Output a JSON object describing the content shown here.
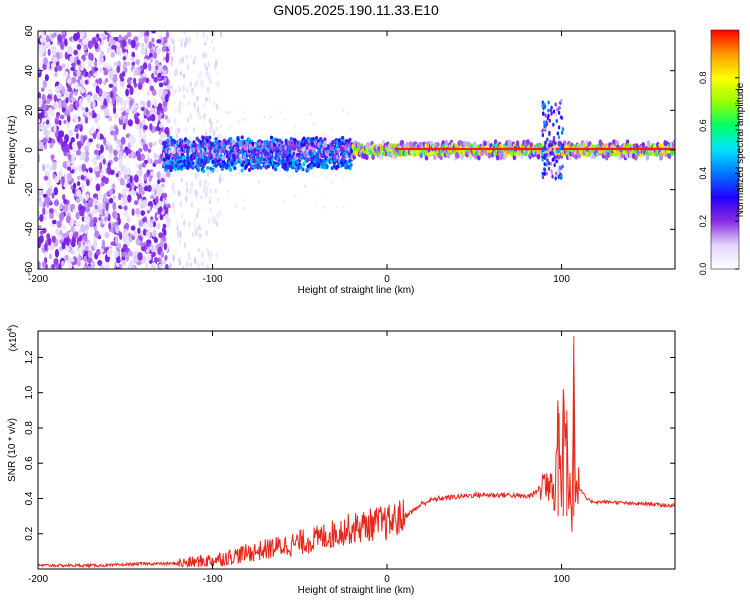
{
  "title": "GN05.2025.190.11.33.E10",
  "colors": {
    "snr_line": "#e8271c",
    "axis": "#000000",
    "background": "#ffffff"
  },
  "chart_data": [
    {
      "type": "heatmap",
      "name": "spectrogram",
      "xlabel": "Height of straight line (km)",
      "ylabel": "Frequency (Hz)",
      "xlim": [
        -200,
        165
      ],
      "ylim": [
        -60,
        60
      ],
      "x_ticks": [
        -200,
        -100,
        0,
        100
      ],
      "x_tick_labels": [
        "-200",
        "-100",
        "0",
        "100"
      ],
      "y_ticks": [
        -60,
        -40,
        -20,
        0,
        20,
        40,
        60
      ],
      "y_tick_labels": [
        "-60",
        "-40",
        "-20",
        "0",
        "20",
        "40",
        "60"
      ],
      "colorbar": {
        "label": "Normalized spectral amplitude",
        "range": [
          0,
          1
        ],
        "ticks": [
          0,
          0.2,
          0.4,
          0.6,
          0.8
        ],
        "tick_labels": [
          "0.0",
          "0.2",
          "0.4",
          "0.6",
          "0.8"
        ],
        "colormap": [
          "#ffffff",
          "#e2d6ff",
          "#8a2be2",
          "#2200ff",
          "#0077ff",
          "#00e5ff",
          "#00ff66",
          "#99ff00",
          "#ffff00",
          "#ff9900",
          "#ff0000"
        ]
      },
      "features": {
        "broadband_noise_x_range": [
          -200,
          -125
        ],
        "sparse_noise_x_range": [
          -125,
          -95
        ],
        "signal_band_center_hz": 0,
        "signal_start_x": -128,
        "strong_signal_start_x": -20,
        "disturbance_x": 97
      }
    },
    {
      "type": "line",
      "name": "snr",
      "xlabel": "Height of straight line (km)",
      "ylabel": "SNR (10 * v/v)",
      "y_multiplier_label": "(x10",
      "y_multiplier_exponent": "4",
      "y_multiplier_suffix": ")",
      "xlim": [
        -200,
        165
      ],
      "ylim": [
        0,
        1.35
      ],
      "x_ticks": [
        -200,
        -100,
        0,
        100
      ],
      "x_tick_labels": [
        "-200",
        "-100",
        "0",
        "100"
      ],
      "y_ticks": [
        0.2,
        0.4,
        0.6,
        0.8,
        1.0,
        1.2
      ],
      "y_tick_labels": [
        "0.2",
        "0.4",
        "0.6",
        "0.8",
        "1.0",
        "1.2"
      ],
      "series": [
        {
          "color": "#e8271c",
          "x": [
            -200,
            -180,
            -160,
            -140,
            -120,
            -110,
            -100,
            -90,
            -80,
            -70,
            -60,
            -50,
            -40,
            -35,
            -30,
            -25,
            -20,
            -15,
            -10,
            -5,
            0,
            5,
            10,
            15,
            20,
            25,
            30,
            40,
            50,
            60,
            70,
            80,
            85,
            88,
            90,
            92,
            94,
            96,
            98,
            100,
            101,
            102,
            103,
            104,
            105,
            106,
            107,
            108,
            109,
            110,
            115,
            120,
            130,
            140,
            150,
            160,
            165
          ],
          "y": [
            0.02,
            0.02,
            0.02,
            0.03,
            0.03,
            0.04,
            0.05,
            0.07,
            0.09,
            0.11,
            0.13,
            0.15,
            0.17,
            0.19,
            0.2,
            0.22,
            0.23,
            0.24,
            0.25,
            0.26,
            0.26,
            0.28,
            0.3,
            0.33,
            0.37,
            0.39,
            0.4,
            0.41,
            0.42,
            0.42,
            0.42,
            0.41,
            0.43,
            0.47,
            0.5,
            0.47,
            0.55,
            0.42,
            0.92,
            0.38,
            1.0,
            0.72,
            0.9,
            0.3,
            0.52,
            0.24,
            1.32,
            0.38,
            0.5,
            0.46,
            0.39,
            0.38,
            0.38,
            0.37,
            0.37,
            0.36,
            0.36
          ]
        }
      ]
    }
  ]
}
